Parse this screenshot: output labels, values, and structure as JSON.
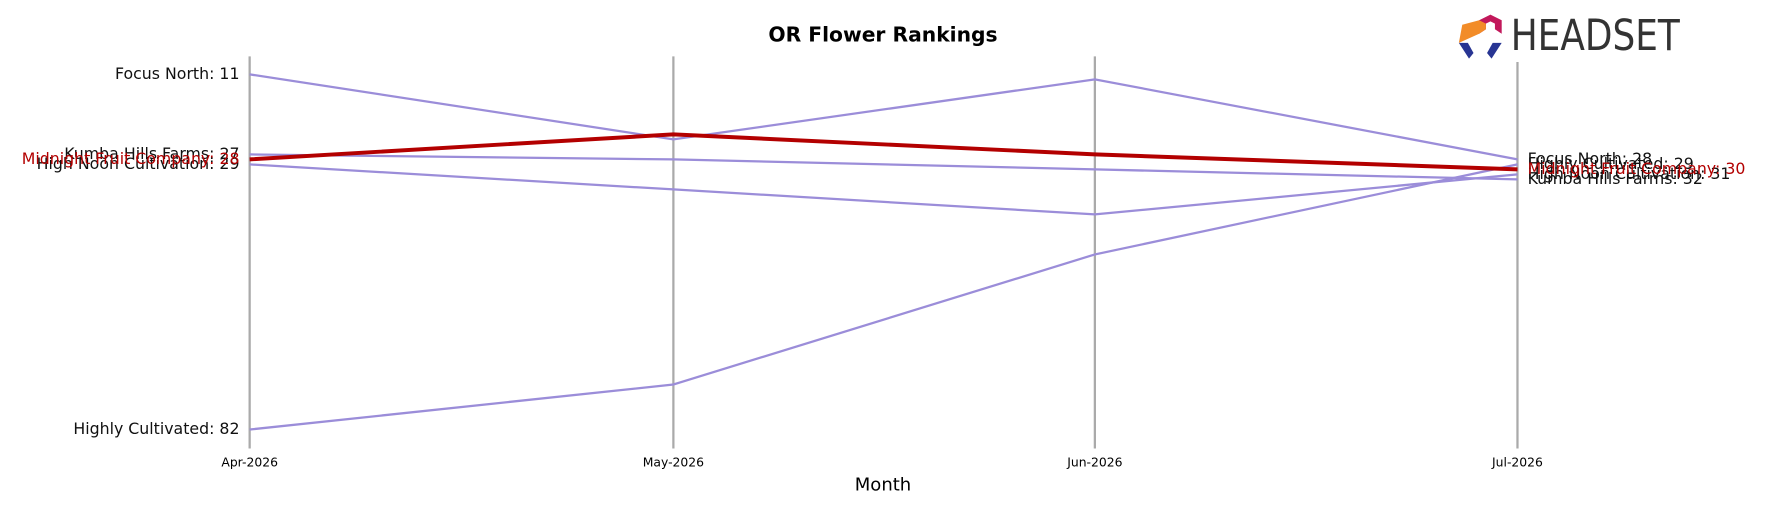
{
  "logo_text": "HEADSET",
  "chart_data": {
    "type": "bump",
    "title": "OR Flower Rankings",
    "x_label": "Month",
    "categories": [
      "Apr-2026",
      "May-2026",
      "Jun-2026",
      "Jul-2026"
    ],
    "ylim": [
      85.8,
      7.4
    ],
    "series": [
      {
        "name": "Focus North",
        "color": "#9b8dd9",
        "values": [
          11,
          24,
          12,
          28
        ],
        "value_labels": [
          "Focus North: 11",
          null,
          null,
          "Focus North: 28"
        ]
      },
      {
        "name": "Kumba Hills Farms",
        "color": "#9b8dd9",
        "values": [
          27,
          28,
          30,
          32
        ],
        "value_labels": [
          "Kumba Hills Farms: 27",
          null,
          null,
          "Kumba Hills Farms: 32"
        ]
      },
      {
        "name": "High Noon Cultivation",
        "color": "#9b8dd9",
        "values": [
          29,
          34,
          39,
          31
        ],
        "value_labels": [
          "High Noon Cultivation: 29",
          null,
          null,
          "High Noon Cultivation: 31"
        ]
      },
      {
        "name": "Highly Cultivated",
        "color": "#9b8dd9",
        "values": [
          82,
          73,
          47,
          29
        ],
        "value_labels": [
          "Highly Cultivated: 82",
          null,
          null,
          "Highly Cultivated: 29"
        ]
      },
      {
        "name": "Midnight Fruit Company",
        "color": "#b30000",
        "values": [
          28,
          23,
          27,
          30
        ],
        "value_labels": [
          "Midnight Fruit Company: 28",
          null,
          null,
          "Midnight Fruit Company: 30"
        ]
      }
    ]
  }
}
